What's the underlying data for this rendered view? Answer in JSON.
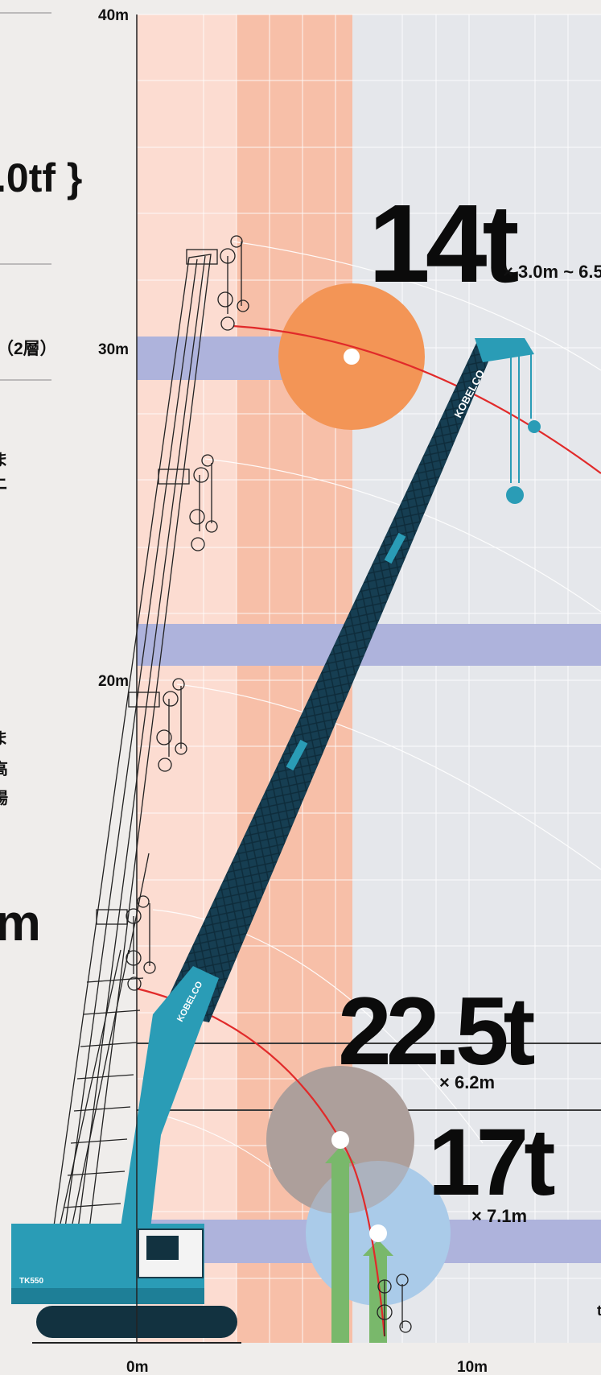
{
  "colors": {
    "background": "#efedeb",
    "zone_light": "#fcdcd1",
    "zone_mid": "#f7bfa8",
    "zone_right": "#e5e7eb",
    "band": "#aeb3dc",
    "orange_circle": "#f39556",
    "brown_circle": "#ad9f9b",
    "blue_circle": "#aacbe9",
    "green_arrow": "#79b86b",
    "crane_teal": "#2a9cb6",
    "crane_boom_dark": "#163e52",
    "red_curve": "#e12a2a"
  },
  "axis": {
    "y_labels": [
      "40m",
      "30m",
      "20m",
      "0m"
    ],
    "x_labels": [
      "0m",
      "10m"
    ]
  },
  "left_text": {
    "capacity": ".0tf }",
    "layer_note": "（2層）",
    "frag_a": "ま",
    "frag_b": "ニ",
    "frag_c": "ま",
    "frag_d": "高",
    "frag_e": "揚",
    "big_m": "m"
  },
  "callouts": {
    "c14": {
      "value": "14t",
      "detail": "× 3.0m ~ 6.5"
    },
    "c225": {
      "value": "22.5t",
      "detail": "× 6.2m"
    },
    "c17": {
      "value": "17t",
      "detail": "× 7.1m"
    }
  },
  "crane": {
    "boom_brand": "KOBELCO",
    "base_brand": "KOBELCO",
    "model": "TK550"
  },
  "misc": {
    "edge_mark": "t"
  }
}
